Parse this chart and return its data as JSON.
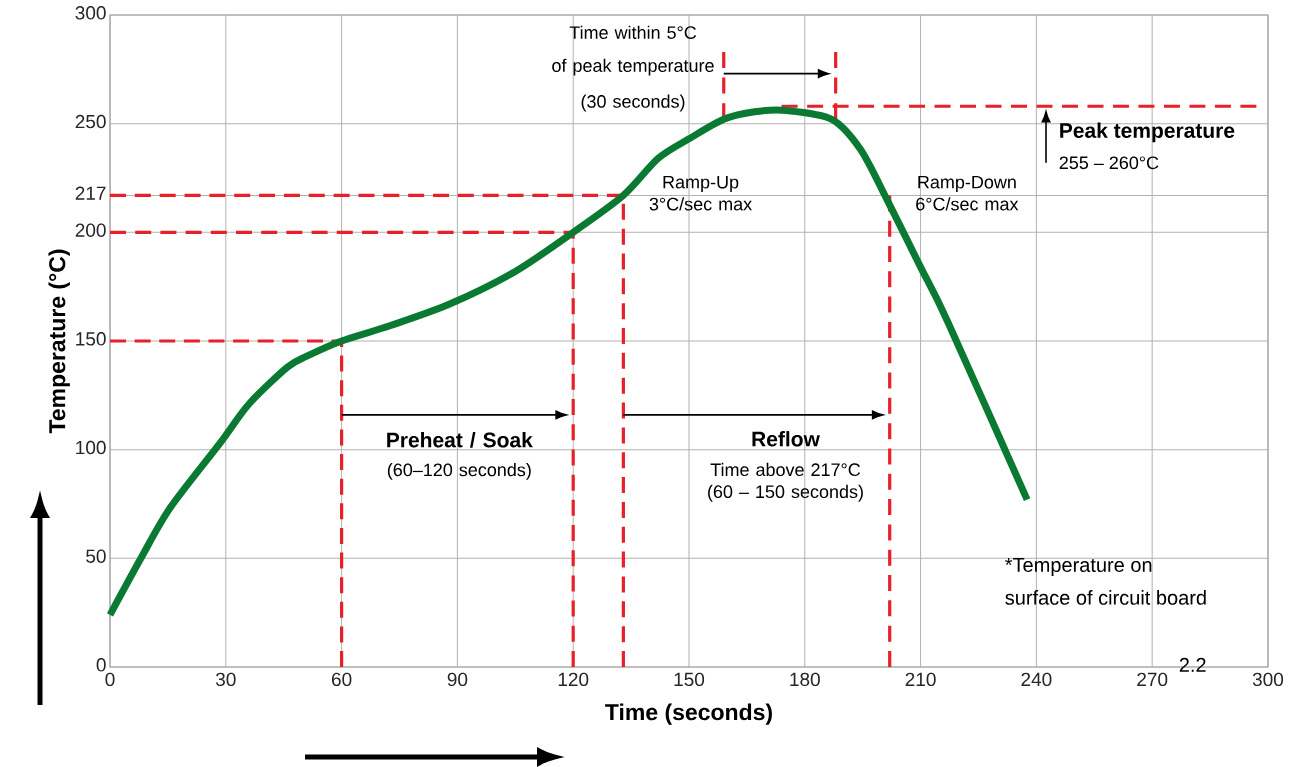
{
  "chart_data": {
    "type": "line",
    "xlabel": "Time (seconds)",
    "ylabel": "Temperature (°C)",
    "xlim": [
      0,
      300
    ],
    "ylim": [
      0,
      300
    ],
    "xticks": [
      0,
      30,
      60,
      90,
      120,
      150,
      180,
      210,
      240,
      270,
      300
    ],
    "yticks": [
      0,
      50,
      100,
      150,
      200,
      217,
      250,
      300
    ],
    "grid": true,
    "series": [
      {
        "color": "#0a7a32",
        "line_style": "solid",
        "x": [
          0,
          8,
          15.5,
          28.5,
          36,
          46,
          51,
          60,
          72.5,
          88,
          105,
          120,
          133,
          142,
          150,
          159,
          167,
          175.5,
          187,
          194.5,
          201.6,
          210,
          217,
          237.6
        ],
        "values": [
          24,
          50,
          73,
          103,
          121,
          138,
          143,
          150,
          157,
          167,
          182,
          200,
          217,
          234,
          243,
          252,
          255.5,
          256,
          252,
          238,
          214,
          184,
          159,
          77
        ]
      },
      {
        "color": "#e8202a",
        "line_style": "dashed",
        "x": [
          0,
          60,
          60
        ],
        "values": [
          150,
          150,
          0
        ]
      },
      {
        "color": "#e8202a",
        "line_style": "dashed",
        "x": [
          0,
          120,
          120
        ],
        "values": [
          200,
          200,
          0
        ]
      },
      {
        "color": "#e8202a",
        "line_style": "dashed",
        "x": [
          0,
          133,
          133
        ],
        "values": [
          217,
          217,
          0
        ]
      },
      {
        "color": "#e8202a",
        "line_style": "dashed",
        "x": [
          202,
          202
        ],
        "values": [
          217,
          0
        ]
      },
      {
        "color": "#e8202a",
        "line_style": "dashed",
        "x": [
          174,
          297
        ],
        "values": [
          258,
          258
        ]
      },
      {
        "color": "#e8202a",
        "line_style": "dashed",
        "x": [
          159,
          159
        ],
        "values": [
          252,
          283
        ]
      },
      {
        "color": "#e8202a",
        "line_style": "dashed",
        "x": [
          188,
          188
        ],
        "values": [
          252,
          283
        ]
      }
    ],
    "annotations": [
      "Time within 5°C",
      "of peak temperature",
      "(30 seconds)",
      "Ramp-Up 3°C/sec max",
      "Ramp-Down 6°C/sec max",
      "Peak temperature",
      "255 – 260°C",
      "Preheat / Soak",
      "(60–120 seconds)",
      "Reflow",
      "Time above 217°C (60 – 150 seconds)",
      "*Temperature on",
      "surface of circuit board",
      "2.2"
    ]
  }
}
